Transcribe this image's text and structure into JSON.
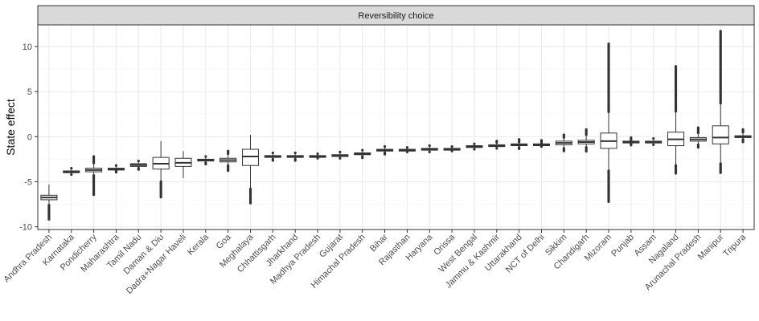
{
  "chart_data": {
    "type": "box",
    "facet_label": "Reversibility choice",
    "xlabel": "",
    "ylabel": "State effect",
    "ylim": [
      -10.3,
      12.4
    ],
    "yticks": [
      -10,
      -5,
      0,
      5,
      10
    ],
    "ytick_labels": [
      "-10",
      "-5",
      "0",
      "5",
      "10"
    ],
    "grid": true,
    "theme": "bw",
    "colors": {
      "panel_border": "#333333",
      "grid_major": "#ebebeb",
      "grid_minor": "#f5f5f5",
      "strip_fill": "#d9d9d9",
      "box_fill": "#ffffff",
      "box_line": "#333333",
      "outlier": "#333333"
    },
    "categories": [
      "Andhra Pradesh",
      "Karnataka",
      "Pondicherry",
      "Maharashtra",
      "Tamil Nadu",
      "Daman & Diu",
      "Dadra+Nagar Haveli",
      "Kerala",
      "Goa",
      "Meghalaya",
      "Chhattisgarh",
      "Jharkhand",
      "Madhya Pradesh",
      "Gujarat",
      "Himachal Pradesh",
      "Bihar",
      "Rajasthan",
      "Haryana",
      "Orissa",
      "West Bengal",
      "Jammu & Kashmir",
      "Uttarakhand",
      "NCT of Delhi",
      "Sikkim",
      "Chandigarh",
      "Mizoram",
      "Punjab",
      "Assam",
      "Nagaland",
      "Arunachal Pradesh",
      "Manipur",
      "Tripura"
    ],
    "boxes": [
      {
        "q1": -7.0,
        "median": -6.75,
        "q3": -6.5,
        "whisker_low": -7.6,
        "whisker_high": -5.3,
        "outlier_low": -9.3,
        "outlier_high": null
      },
      {
        "q1": -4.0,
        "median": -3.9,
        "q3": -3.8,
        "whisker_low": -4.2,
        "whisker_high": -3.6,
        "outlier_low": -4.3,
        "outlier_high": -3.5
      },
      {
        "q1": -3.9,
        "median": -3.7,
        "q3": -3.5,
        "whisker_low": -4.3,
        "whisker_high": -3.0,
        "outlier_low": -6.5,
        "outlier_high": -2.2
      },
      {
        "q1": -3.7,
        "median": -3.6,
        "q3": -3.5,
        "whisker_low": -3.8,
        "whisker_high": -3.3,
        "outlier_low": -4.0,
        "outlier_high": -3.2
      },
      {
        "q1": -3.3,
        "median": -3.15,
        "q3": -3.0,
        "whisker_low": -3.5,
        "whisker_high": -2.8,
        "outlier_low": -3.7,
        "outlier_high": -2.7
      },
      {
        "q1": -3.6,
        "median": -3.0,
        "q3": -2.3,
        "whisker_low": -5.0,
        "whisker_high": -0.5,
        "outlier_low": -6.8,
        "outlier_high": null
      },
      {
        "q1": -3.3,
        "median": -2.9,
        "q3": -2.4,
        "whisker_low": -4.6,
        "whisker_high": -1.6,
        "outlier_low": null,
        "outlier_high": null
      },
      {
        "q1": -2.7,
        "median": -2.6,
        "q3": -2.5,
        "whisker_low": -2.9,
        "whisker_high": -2.3,
        "outlier_low": -3.1,
        "outlier_high": -2.2
      },
      {
        "q1": -2.8,
        "median": -2.6,
        "q3": -2.4,
        "whisker_low": -3.2,
        "whisker_high": -2.0,
        "outlier_low": -3.9,
        "outlier_high": -1.6
      },
      {
        "q1": -3.2,
        "median": -2.2,
        "q3": -1.4,
        "whisker_low": -5.8,
        "whisker_high": 0.2,
        "outlier_low": -7.4,
        "outlier_high": null
      },
      {
        "q1": -2.3,
        "median": -2.2,
        "q3": -2.1,
        "whisker_low": -2.5,
        "whisker_high": -1.9,
        "outlier_low": -2.7,
        "outlier_high": -1.8
      },
      {
        "q1": -2.3,
        "median": -2.2,
        "q3": -2.1,
        "whisker_low": -2.5,
        "whisker_high": -1.9,
        "outlier_low": -2.7,
        "outlier_high": -1.8
      },
      {
        "q1": -2.3,
        "median": -2.2,
        "q3": -2.1,
        "whisker_low": -2.4,
        "whisker_high": -2.0,
        "outlier_low": -2.5,
        "outlier_high": -1.9
      },
      {
        "q1": -2.2,
        "median": -2.1,
        "q3": -2.0,
        "whisker_low": -2.4,
        "whisker_high": -1.8,
        "outlier_low": -2.5,
        "outlier_high": -1.7
      },
      {
        "q1": -2.0,
        "median": -1.9,
        "q3": -1.8,
        "whisker_low": -2.2,
        "whisker_high": -1.6,
        "outlier_low": -2.4,
        "outlier_high": -1.5
      },
      {
        "q1": -1.6,
        "median": -1.5,
        "q3": -1.4,
        "whisker_low": -1.8,
        "whisker_high": -1.2,
        "outlier_low": -2.0,
        "outlier_high": -1.1
      },
      {
        "q1": -1.6,
        "median": -1.5,
        "q3": -1.4,
        "whisker_low": -1.7,
        "whisker_high": -1.3,
        "outlier_low": -1.8,
        "outlier_high": -1.2
      },
      {
        "q1": -1.5,
        "median": -1.4,
        "q3": -1.3,
        "whisker_low": -1.7,
        "whisker_high": -1.1,
        "outlier_low": -1.8,
        "outlier_high": -1.0
      },
      {
        "q1": -1.5,
        "median": -1.4,
        "q3": -1.3,
        "whisker_low": -1.6,
        "whisker_high": -1.2,
        "outlier_low": -1.7,
        "outlier_high": -1.1
      },
      {
        "q1": -1.2,
        "median": -1.1,
        "q3": -1.0,
        "whisker_low": -1.4,
        "whisker_high": -0.9,
        "outlier_low": -1.5,
        "outlier_high": -0.8
      },
      {
        "q1": -1.1,
        "median": -1.0,
        "q3": -0.9,
        "whisker_low": -1.3,
        "whisker_high": -0.7,
        "outlier_low": -1.4,
        "outlier_high": -0.5
      },
      {
        "q1": -1.0,
        "median": -0.9,
        "q3": -0.8,
        "whisker_low": -1.2,
        "whisker_high": -0.6,
        "outlier_low": -1.4,
        "outlier_high": -0.3
      },
      {
        "q1": -1.0,
        "median": -0.9,
        "q3": -0.8,
        "whisker_low": -1.1,
        "whisker_high": -0.7,
        "outlier_low": -1.2,
        "outlier_high": -0.4
      },
      {
        "q1": -0.9,
        "median": -0.7,
        "q3": -0.5,
        "whisker_low": -1.3,
        "whisker_high": -0.2,
        "outlier_low": -1.7,
        "outlier_high": 0.2
      },
      {
        "q1": -0.8,
        "median": -0.6,
        "q3": -0.4,
        "whisker_low": -1.2,
        "whisker_high": 0.1,
        "outlier_low": -1.7,
        "outlier_high": 0.8
      },
      {
        "q1": -1.3,
        "median": -0.5,
        "q3": 0.4,
        "whisker_low": -3.8,
        "whisker_high": 2.7,
        "outlier_low": -7.3,
        "outlier_high": 10.3
      },
      {
        "q1": -0.7,
        "median": -0.6,
        "q3": -0.5,
        "whisker_low": -0.8,
        "whisker_high": -0.4,
        "outlier_low": -1.0,
        "outlier_high": -0.1
      },
      {
        "q1": -0.7,
        "median": -0.6,
        "q3": -0.5,
        "whisker_low": -0.9,
        "whisker_high": -0.3,
        "outlier_low": -1.0,
        "outlier_high": -0.2
      },
      {
        "q1": -1.0,
        "median": -0.3,
        "q3": 0.5,
        "whisker_low": -3.2,
        "whisker_high": 2.7,
        "outlier_low": -4.1,
        "outlier_high": 7.8
      },
      {
        "q1": -0.5,
        "median": -0.3,
        "q3": -0.1,
        "whisker_low": -0.9,
        "whisker_high": 0.4,
        "outlier_low": -1.3,
        "outlier_high": 1.0
      },
      {
        "q1": -0.8,
        "median": -0.1,
        "q3": 1.2,
        "whisker_low": -3.0,
        "whisker_high": 3.7,
        "outlier_low": -4.0,
        "outlier_high": 11.7
      },
      {
        "q1": -0.1,
        "median": 0.0,
        "q3": 0.1,
        "whisker_low": -0.3,
        "whisker_high": 0.4,
        "outlier_low": -0.7,
        "outlier_high": 0.8
      }
    ]
  }
}
